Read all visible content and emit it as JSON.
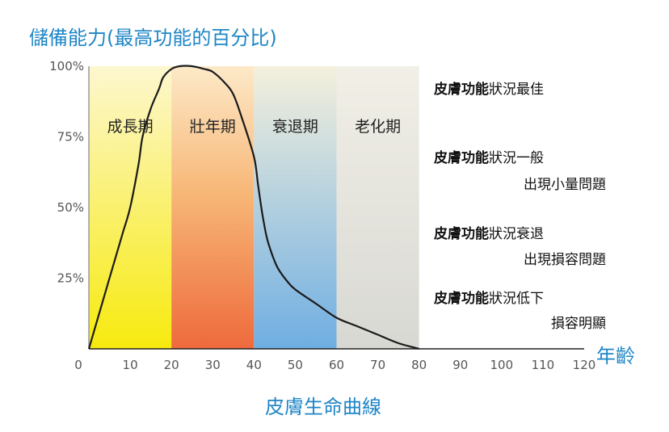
{
  "chart_data": {
    "type": "line",
    "title": "儲備能力(最高功能的百分比)",
    "subtitle": "皮膚生命曲線",
    "xlabel": "年齡",
    "ylabel": "",
    "x_ticks": [
      "0",
      "10",
      "20",
      "30",
      "40",
      "50",
      "60",
      "70",
      "80",
      "90",
      "100",
      "110",
      "120"
    ],
    "y_ticks": [
      "100%",
      "75%",
      "50%",
      "25%"
    ],
    "xlim": [
      0,
      120
    ],
    "ylim": [
      0,
      100
    ],
    "grid": false,
    "phases": [
      {
        "label": "成長期",
        "x_start": 0,
        "x_end": 20
      },
      {
        "label": "壯年期",
        "x_start": 20,
        "x_end": 40
      },
      {
        "label": "衰退期",
        "x_start": 40,
        "x_end": 60
      },
      {
        "label": "老化期",
        "x_start": 60,
        "x_end": 80
      }
    ],
    "series": [
      {
        "x": [
          0,
          5,
          8,
          10,
          12,
          13,
          15,
          17,
          18,
          20,
          22,
          25,
          28,
          30,
          33,
          35,
          37,
          40,
          41,
          42,
          43,
          44,
          45,
          46,
          48,
          50,
          55,
          60,
          65,
          70,
          75,
          80
        ],
        "y": [
          0,
          25,
          40,
          50,
          65,
          75,
          85,
          92,
          96,
          99,
          100,
          100,
          99,
          98,
          94,
          90,
          82,
          68,
          58,
          48,
          40,
          35,
          31,
          28,
          24,
          21,
          16,
          11,
          8,
          5,
          2,
          0
        ]
      }
    ],
    "annotations": [
      {
        "bold": "皮膚功能",
        "text": "狀況最佳",
        "line2": ""
      },
      {
        "bold": "皮膚功能",
        "text": "狀況一般",
        "line2": "出現小量問題"
      },
      {
        "bold": "皮膚功能",
        "text": "狀況衰退",
        "line2": "出現損容問題"
      },
      {
        "bold": "皮膚功能",
        "text": "狀況低下",
        "line2": "損容明顯"
      }
    ]
  }
}
